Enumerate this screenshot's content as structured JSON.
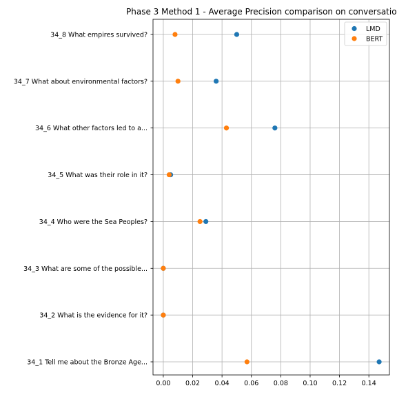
{
  "chart_data": {
    "type": "scatter",
    "title": "Phase 3 Method 1 - Average Precision comparison on conversatio",
    "xlabel": "",
    "ylabel": "",
    "xlim": [
      -0.007,
      0.154
    ],
    "xticks": [
      0.0,
      0.02,
      0.04,
      0.06,
      0.08,
      0.1,
      0.12,
      0.14
    ],
    "xtick_labels": [
      "0.00",
      "0.02",
      "0.04",
      "0.06",
      "0.08",
      "0.10",
      "0.12",
      "0.14"
    ],
    "categories": [
      "34_1 Tell me about the Bronze Age...",
      "34_2 What is the evidence for it?",
      "34_3 What are some of the possible...",
      "34_4 Who were the Sea Peoples?",
      "34_5 What was their role in it?",
      "34_6 What other factors led to a...",
      "34_7 What about environmental factors?",
      "34_8 What empires survived?"
    ],
    "series": [
      {
        "name": "LMD",
        "color": "#1f77b4",
        "values": [
          0.147,
          0.0,
          0.0,
          0.029,
          0.005,
          0.076,
          0.036,
          0.05
        ]
      },
      {
        "name": "BERT",
        "color": "#ff7f0e",
        "values": [
          0.057,
          0.0,
          0.0,
          0.025,
          0.004,
          0.043,
          0.01,
          0.008
        ]
      }
    ],
    "grid": true,
    "legend_position": "top-right"
  }
}
